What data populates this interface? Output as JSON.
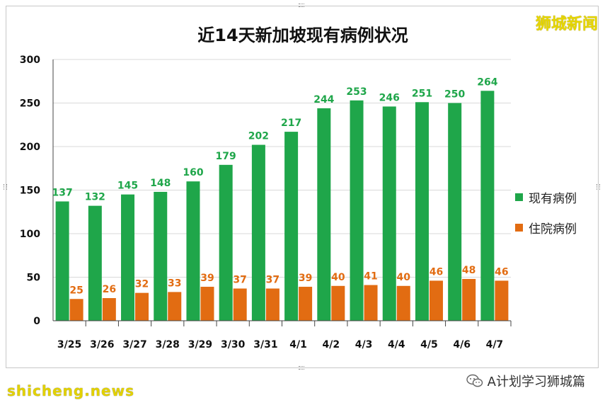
{
  "brand": "狮城新闻",
  "watermark_bottom_left": "shicheng.news",
  "account": "A计划学习狮城篇",
  "wechat_icon": "wechat-icon",
  "colors": {
    "current": "#1fa64a",
    "hospital": "#e26c12",
    "axis": "#444444",
    "grid": "#d9d9d9"
  },
  "chart_data": {
    "type": "bar",
    "title": "近14天新加坡现有病例状况",
    "categories": [
      "3/25",
      "3/26",
      "3/27",
      "3/28",
      "3/29",
      "3/30",
      "3/31",
      "4/1",
      "4/2",
      "4/3",
      "4/4",
      "4/5",
      "4/6",
      "4/7"
    ],
    "series": [
      {
        "name": "现有病例",
        "values": [
          137,
          132,
          145,
          148,
          160,
          179,
          202,
          217,
          244,
          253,
          246,
          251,
          250,
          264
        ]
      },
      {
        "name": "住院病例",
        "values": [
          25,
          26,
          32,
          33,
          39,
          37,
          37,
          39,
          40,
          41,
          40,
          46,
          48,
          46
        ]
      }
    ],
    "y_ticks": [
      0,
      50,
      100,
      150,
      200,
      250,
      300
    ],
    "ylim": [
      0,
      300
    ],
    "legend_position": "right",
    "grid": true
  }
}
